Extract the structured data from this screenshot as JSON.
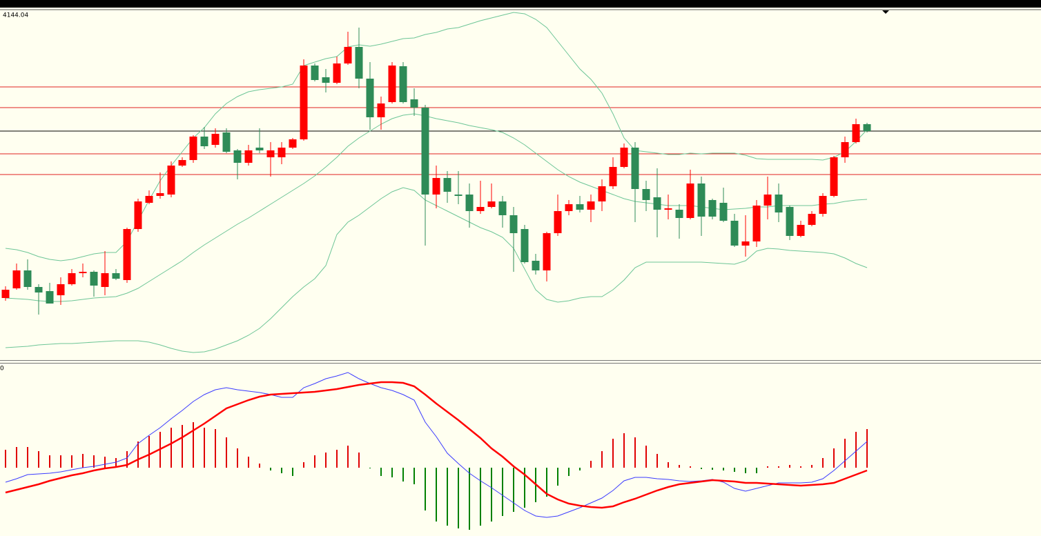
{
  "chart_data": [
    {
      "type": "candlestick",
      "title": "4144.04",
      "ylim": [
        -2,
        506
      ],
      "up_color": "#ff0000",
      "down_color": "#2e8b57",
      "open": [
        88,
        102,
        128,
        104,
        98,
        92,
        108,
        124,
        126,
        104,
        124,
        114,
        188,
        226,
        236,
        238,
        280,
        288,
        322,
        310,
        328,
        302,
        284,
        306,
        292,
        292,
        306,
        318,
        425,
        408,
        400,
        428,
        452,
        406,
        350,
        372,
        424,
        376,
        364,
        238,
        262,
        238,
        238,
        214,
        220,
        228,
        208,
        188,
        142,
        128,
        182,
        214,
        224,
        216,
        228,
        250,
        278,
        306,
        246,
        234,
        216,
        216,
        204,
        254,
        230,
        226,
        200,
        164,
        170,
        222,
        238,
        220,
        178,
        194,
        210,
        236,
        292,
        314,
        340
      ],
      "high": [
        105,
        138,
        144,
        108,
        110,
        118,
        130,
        138,
        128,
        156,
        130,
        190,
        232,
        244,
        270,
        286,
        292,
        324,
        336,
        334,
        334,
        304,
        310,
        334,
        314,
        314,
        320,
        434,
        428,
        420,
        438,
        474,
        480,
        430,
        380,
        430,
        430,
        392,
        368,
        280,
        272,
        272,
        254,
        258,
        254,
        236,
        220,
        194,
        152,
        184,
        238,
        230,
        236,
        238,
        260,
        292,
        312,
        314,
        258,
        276,
        238,
        224,
        274,
        264,
        232,
        248,
        210,
        208,
        230,
        264,
        254,
        222,
        200,
        214,
        240,
        294,
        322,
        348,
        342
      ],
      "low": [
        84,
        100,
        100,
        64,
        80,
        78,
        106,
        118,
        90,
        92,
        114,
        110,
        184,
        224,
        232,
        234,
        278,
        284,
        304,
        306,
        298,
        260,
        280,
        298,
        264,
        282,
        304,
        316,
        402,
        386,
        398,
        426,
        392,
        332,
        332,
        370,
        370,
        352,
        164,
        218,
        226,
        224,
        190,
        210,
        218,
        190,
        126,
        138,
        122,
        112,
        178,
        208,
        212,
        198,
        214,
        246,
        276,
        198,
        214,
        176,
        202,
        174,
        202,
        178,
        202,
        198,
        162,
        148,
        162,
        202,
        198,
        172,
        176,
        192,
        206,
        234,
        284,
        312,
        328
      ],
      "close": [
        100,
        128,
        104,
        96,
        80,
        108,
        124,
        126,
        106,
        124,
        116,
        188,
        228,
        236,
        240,
        280,
        288,
        322,
        308,
        326,
        300,
        284,
        302,
        302,
        302,
        306,
        318,
        425,
        404,
        400,
        428,
        452,
        406,
        350,
        370,
        425,
        372,
        364,
        238,
        262,
        242,
        236,
        214,
        220,
        228,
        208,
        182,
        140,
        128,
        182,
        214,
        224,
        216,
        228,
        250,
        278,
        306,
        246,
        230,
        216,
        218,
        204,
        254,
        206,
        206,
        200,
        164,
        170,
        222,
        238,
        212,
        178,
        194,
        210,
        236,
        292,
        314,
        340,
        330
      ],
      "lines": [
        {
          "color": "#6cc596",
          "values": [
            160,
            158,
            154,
            148,
            144,
            142,
            144,
            148,
            152,
            154,
            154,
            170,
            200,
            230,
            258,
            280,
            300,
            320,
            335,
            355,
            370,
            380,
            387,
            390,
            392,
            394,
            398,
            425,
            430,
            435,
            438,
            452,
            455,
            453,
            456,
            460,
            464,
            465,
            470,
            473,
            478,
            480,
            485,
            490,
            494,
            498,
            502,
            500,
            492,
            480,
            460,
            440,
            420,
            405,
            385,
            355,
            320,
            302,
            300,
            298,
            296,
            296,
            298,
            297,
            298,
            298,
            298,
            295,
            290,
            289,
            289,
            289,
            289,
            289,
            288,
            292,
            300,
            315,
            332
          ]
        },
        {
          "color": "#6cc596",
          "values": [
            88,
            87,
            86,
            84,
            83,
            83,
            84,
            86,
            88,
            89,
            90,
            95,
            102,
            112,
            122,
            132,
            142,
            154,
            165,
            175,
            185,
            195,
            204,
            214,
            224,
            234,
            244,
            254,
            265,
            278,
            292,
            308,
            320,
            330,
            340,
            348,
            353,
            355,
            352,
            348,
            345,
            342,
            338,
            335,
            332,
            328,
            320,
            310,
            298,
            286,
            274,
            264,
            256,
            250,
            244,
            238,
            232,
            228,
            226,
            224,
            222,
            222,
            222,
            220,
            218,
            216,
            217,
            218,
            220,
            220,
            222,
            222,
            222,
            222,
            224,
            225,
            228,
            230,
            231
          ]
        },
        {
          "color": "#6cc596",
          "values": [
            16,
            17,
            18,
            20,
            21,
            22,
            22,
            23,
            24,
            25,
            26,
            26,
            26,
            24,
            20,
            15,
            11,
            9,
            10,
            14,
            20,
            26,
            34,
            44,
            58,
            74,
            90,
            104,
            116,
            135,
            180,
            198,
            208,
            220,
            232,
            242,
            248,
            244,
            230,
            222,
            214,
            206,
            198,
            190,
            184,
            176,
            160,
            130,
            100,
            86,
            82,
            84,
            88,
            90,
            90,
            100,
            114,
            132,
            140,
            140,
            140,
            140,
            140,
            140,
            139,
            138,
            137,
            142,
            156,
            160,
            159,
            157,
            156,
            155,
            154,
            152,
            146,
            138,
            132
          ]
        }
      ],
      "hlines": [
        {
          "value": 394,
          "color": "#e02020"
        },
        {
          "value": 364,
          "color": "#e02020"
        },
        {
          "value": 330,
          "color": "#000000"
        },
        {
          "value": 297,
          "color": "#e02020"
        },
        {
          "value": 267,
          "color": "#e02020"
        }
      ]
    },
    {
      "type": "macd",
      "title": "0",
      "ylim": [
        -99,
        150
      ],
      "up_color": "#e00000",
      "down_color": "#008000",
      "values": [
        26,
        30,
        30,
        24,
        18,
        18,
        18,
        20,
        18,
        16,
        14,
        24,
        38,
        46,
        52,
        58,
        62,
        66,
        58,
        56,
        44,
        28,
        16,
        6,
        -4,
        -8,
        -12,
        8,
        18,
        22,
        26,
        32,
        22,
        -1,
        -12,
        -14,
        -20,
        -24,
        -62,
        -78,
        -84,
        -88,
        -90,
        -84,
        -78,
        -70,
        -64,
        -58,
        -50,
        -42,
        -26,
        -12,
        -4,
        10,
        24,
        42,
        50,
        44,
        32,
        20,
        8,
        4,
        2,
        -2,
        -3,
        -4,
        -6,
        -8,
        -8,
        2,
        2,
        4,
        2,
        4,
        14,
        28,
        42,
        52,
        56
      ],
      "series": [
        {
          "color": "#3a3aff",
          "width": 1,
          "values": [
            -21,
            -16,
            -10,
            -9,
            -8,
            -6,
            -3,
            0,
            2,
            5,
            8,
            14,
            35,
            47,
            58,
            71,
            83,
            96,
            106,
            113,
            116,
            113,
            111,
            109,
            106,
            102,
            102,
            116,
            122,
            129,
            133,
            138,
            129,
            122,
            116,
            112,
            106,
            98,
            66,
            45,
            21,
            6,
            -8,
            -19,
            -29,
            -40,
            -51,
            -62,
            -70,
            -72,
            -70,
            -64,
            -58,
            -51,
            -44,
            -33,
            -19,
            -14,
            -14,
            -16,
            -17,
            -19,
            -20,
            -19,
            -17,
            -21,
            -30,
            -34,
            -30,
            -26,
            -22,
            -22,
            -22,
            -21,
            -16,
            -4,
            10,
            24,
            38
          ]
        },
        {
          "color": "#ff0000",
          "width": 2.5,
          "values": [
            -36,
            -32,
            -28,
            -24,
            -19,
            -15,
            -11,
            -8,
            -4,
            -1,
            1,
            4,
            12,
            19,
            27,
            35,
            44,
            54,
            64,
            75,
            86,
            92,
            98,
            103,
            106,
            107,
            108,
            109,
            110,
            112,
            114,
            117,
            120,
            122,
            124,
            124,
            123,
            118,
            106,
            93,
            81,
            69,
            56,
            43,
            28,
            16,
            2,
            -10,
            -24,
            -38,
            -46,
            -52,
            -55,
            -57,
            -58,
            -56,
            -50,
            -45,
            -39,
            -33,
            -28,
            -24,
            -22,
            -20,
            -18,
            -19,
            -20,
            -22,
            -22,
            -23,
            -24,
            -25,
            -26,
            -25,
            -24,
            -22,
            -16,
            -10,
            -4
          ]
        }
      ]
    }
  ]
}
